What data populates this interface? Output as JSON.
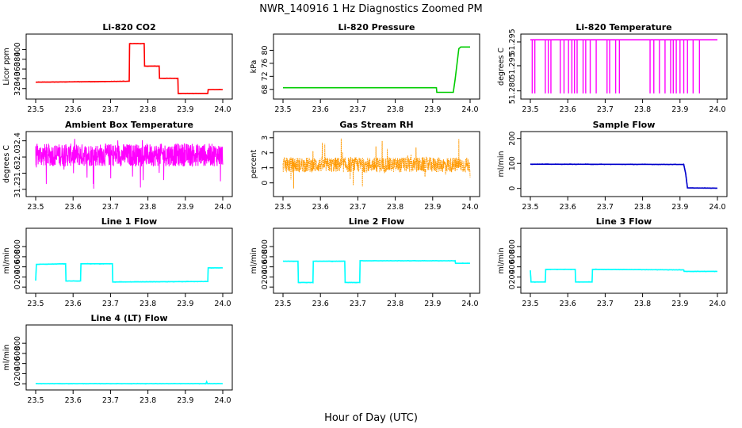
{
  "figure": {
    "title": "NWR_140916  1 Hz Diagnostics Zoomed PM",
    "xlabel": "Hour of Day (UTC)"
  },
  "chart_data": [
    {
      "type": "line",
      "title": "Li-820 CO2",
      "ylabel": "Licor ppm",
      "color": "#ff0000",
      "xlim": [
        23.5,
        24.0
      ],
      "ylim": [
        305,
        425
      ],
      "xticks": [
        "23.5",
        "23.6",
        "23.7",
        "23.8",
        "23.9",
        "24.0"
      ],
      "yticks": [
        "320",
        "340",
        "360",
        "380",
        "400"
      ],
      "x": [
        23.5,
        23.64,
        23.75,
        23.751,
        23.79,
        23.791,
        23.83,
        23.831,
        23.88,
        23.881,
        23.96,
        23.961,
        24.0
      ],
      "y": [
        333,
        334,
        335,
        412,
        412,
        366,
        366,
        341,
        341,
        310,
        310,
        318,
        318
      ]
    },
    {
      "type": "line",
      "title": "Li-820 Pressure",
      "ylabel": "kPa",
      "color": "#00cc00",
      "xlim": [
        23.5,
        24.0
      ],
      "ylim": [
        66,
        84
      ],
      "xticks": [
        "23.5",
        "23.6",
        "23.7",
        "23.8",
        "23.9",
        "24.0"
      ],
      "yticks": [
        "68",
        "72",
        "76",
        "80"
      ],
      "x": [
        23.5,
        23.91,
        23.911,
        23.955,
        23.96,
        23.97,
        23.975,
        24.0
      ],
      "y": [
        68.5,
        68.5,
        67.1,
        67.1,
        71.0,
        80.5,
        81.0,
        81.0
      ]
    },
    {
      "type": "line",
      "title": "Li-820 Temperature",
      "ylabel": "degrees C",
      "color": "#ff00ff",
      "xlim": [
        23.5,
        24.0
      ],
      "ylim": [
        51.277,
        51.312
      ],
      "xticks": [
        "23.5",
        "23.6",
        "23.7",
        "23.8",
        "23.9",
        "24.0"
      ],
      "yticks": [
        "51.280",
        "51.295"
      ],
      "ytick_values": [
        51.28,
        51.295
      ],
      "extra_ytick_labels": [
        "51.295",
        "51.295"
      ],
      "baseline": 51.3105,
      "low": 51.2785,
      "dropouts": [
        23.505,
        23.512,
        23.54,
        23.548,
        23.555,
        23.58,
        23.59,
        23.602,
        23.611,
        23.618,
        23.625,
        23.641,
        23.648,
        23.66,
        23.676,
        23.705,
        23.712,
        23.728,
        23.738,
        23.82,
        23.83,
        23.845,
        23.86,
        23.875,
        23.882,
        23.89,
        23.9,
        23.91,
        23.92,
        23.935,
        23.952
      ]
    },
    {
      "type": "line",
      "title": "Ambient Box Temperature",
      "ylabel": "degrees C",
      "color": "#ff00ff",
      "xlim": [
        23.5,
        24.0
      ],
      "ylim": [
        31.1,
        32.55
      ],
      "xticks": [
        "23.5",
        "23.6",
        "23.7",
        "23.8",
        "23.9",
        "24.0"
      ],
      "yticks": [
        "31.2",
        "31.6",
        "32.0",
        "32.4"
      ],
      "center": 32.05,
      "spread": 0.28,
      "range_min": 31.2,
      "range_max": 32.5
    },
    {
      "type": "line",
      "title": "Gas Stream RH",
      "ylabel": "percent",
      "color": "#ff9900",
      "xlim": [
        23.5,
        24.0
      ],
      "ylim": [
        -0.7,
        3.2
      ],
      "xticks": [
        "23.5",
        "23.6",
        "23.7",
        "23.8",
        "23.9",
        "24.0"
      ],
      "yticks": [
        "0",
        "1",
        "2",
        "3"
      ],
      "center": 1.2,
      "spread": 0.5,
      "range_min": -0.6,
      "range_max": 3.1
    },
    {
      "type": "line",
      "title": "Sample Flow",
      "ylabel": "ml/min",
      "color": "#0000cc",
      "xlim": [
        23.5,
        24.0
      ],
      "ylim": [
        -20,
        215
      ],
      "xticks": [
        "23.5",
        "23.6",
        "23.7",
        "23.8",
        "23.9",
        "24.0"
      ],
      "yticks": [
        "0",
        "100",
        "200"
      ],
      "x": [
        23.5,
        23.91,
        23.915,
        23.92,
        24.0
      ],
      "y": [
        97,
        96,
        60,
        2,
        1
      ]
    },
    {
      "type": "line",
      "title": "Line 1 Flow",
      "ylabel": "ml/min",
      "color": "#00ffff",
      "xlim": [
        23.5,
        24.0
      ],
      "ylim": [
        -60,
        1100
      ],
      "xticks": [
        "23.5",
        "23.6",
        "23.7",
        "23.8",
        "23.9",
        "24.0"
      ],
      "yticks": [
        "0",
        "200",
        "400",
        "600",
        "800"
      ],
      "x": [
        23.5,
        23.502,
        23.58,
        23.581,
        23.62,
        23.621,
        23.705,
        23.706,
        23.96,
        23.961,
        24.0
      ],
      "y": [
        130,
        450,
        460,
        120,
        120,
        460,
        460,
        100,
        110,
        380,
        380
      ]
    },
    {
      "type": "line",
      "title": "Line 2 Flow",
      "ylabel": "ml/min",
      "color": "#00ffff",
      "xlim": [
        23.5,
        24.0
      ],
      "ylim": [
        -60,
        1100
      ],
      "xticks": [
        "23.5",
        "23.6",
        "23.7",
        "23.8",
        "23.9",
        "24.0"
      ],
      "yticks": [
        "0",
        "200",
        "400",
        "600",
        "800"
      ],
      "x": [
        23.5,
        23.54,
        23.541,
        23.58,
        23.581,
        23.665,
        23.666,
        23.705,
        23.706,
        23.96,
        23.961,
        24.0
      ],
      "y": [
        510,
        510,
        90,
        90,
        510,
        510,
        90,
        90,
        520,
        520,
        470,
        470
      ]
    },
    {
      "type": "line",
      "title": "Line 3 Flow",
      "ylabel": "ml/min",
      "color": "#00ffff",
      "xlim": [
        23.5,
        24.0
      ],
      "ylim": [
        -60,
        1100
      ],
      "xticks": [
        "23.5",
        "23.6",
        "23.7",
        "23.8",
        "23.9",
        "24.0"
      ],
      "yticks": [
        "0",
        "200",
        "400",
        "600",
        "800"
      ],
      "x": [
        23.5,
        23.502,
        23.54,
        23.541,
        23.62,
        23.621,
        23.665,
        23.666,
        23.91,
        23.911,
        24.0
      ],
      "y": [
        330,
        100,
        100,
        350,
        350,
        100,
        100,
        350,
        340,
        310,
        310
      ]
    },
    {
      "type": "line",
      "title": "Line 4 (LT) Flow",
      "ylabel": "ml/min",
      "color": "#00ffff",
      "xlim": [
        23.5,
        24.0
      ],
      "ylim": [
        -60,
        1100
      ],
      "xticks": [
        "23.5",
        "23.6",
        "23.7",
        "23.8",
        "23.9",
        "24.0"
      ],
      "yticks": [
        "0",
        "200",
        "400",
        "600",
        "800"
      ],
      "x": [
        23.5,
        23.955,
        23.957,
        23.959,
        24.0
      ],
      "y": [
        2,
        2,
        40,
        3,
        2
      ]
    }
  ]
}
